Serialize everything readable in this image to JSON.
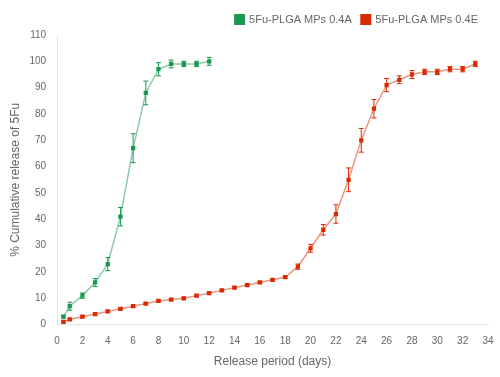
{
  "chart_data": {
    "type": "line",
    "xlabel": "Release period (days)",
    "ylabel": "% Cumulative release of 5Fu",
    "xlim": [
      0,
      34
    ],
    "ylim": [
      0,
      110
    ],
    "xticks": [
      0,
      2,
      4,
      6,
      8,
      10,
      12,
      14,
      16,
      18,
      20,
      22,
      24,
      26,
      28,
      30,
      32,
      34
    ],
    "yticks": [
      0,
      10,
      20,
      30,
      40,
      50,
      60,
      70,
      80,
      90,
      100,
      110
    ],
    "grid": false,
    "legend": "upper right",
    "marker": "square",
    "series": [
      {
        "name": "5Fu-PLGA MPs 0.4A",
        "color": "#1a9850",
        "x": [
          0.5,
          1,
          2,
          3,
          4,
          5,
          6,
          7,
          8,
          9,
          10,
          11,
          12
        ],
        "values": [
          3,
          7,
          11,
          16,
          23,
          41,
          67,
          88,
          97,
          99,
          99,
          99,
          100
        ],
        "yerr": [
          0.5,
          1.5,
          1.0,
          1.5,
          2.5,
          3.5,
          5.5,
          4.5,
          2.5,
          1.5,
          1.0,
          1.0,
          1.5
        ]
      },
      {
        "name": "5Fu-PLGA MPs 0.4E",
        "color": "#d92b00",
        "x": [
          0.5,
          1,
          2,
          3,
          4,
          5,
          6,
          7,
          8,
          9,
          10,
          11,
          12,
          13,
          14,
          15,
          16,
          17,
          18,
          19,
          20,
          21,
          22,
          23,
          24,
          25,
          26,
          27,
          28,
          29,
          30,
          31,
          32,
          33
        ],
        "values": [
          1,
          2,
          3,
          4,
          5,
          6,
          7,
          8,
          9,
          9.5,
          10,
          11,
          12,
          13,
          14,
          15,
          16,
          17,
          18,
          22,
          29,
          36,
          42,
          55,
          70,
          82,
          91,
          93,
          95,
          96,
          96,
          97,
          97,
          99
        ],
        "yerr": [
          0.4,
          0.4,
          0.4,
          0.4,
          0.4,
          0.4,
          0.4,
          0.4,
          0.4,
          0.4,
          0.4,
          0.4,
          0.4,
          0.4,
          0.4,
          0.4,
          0.4,
          0.4,
          0.4,
          1.0,
          1.5,
          2.0,
          3.5,
          4.5,
          4.5,
          3.5,
          2.5,
          1.5,
          1.5,
          1.0,
          1.0,
          1.0,
          1.0,
          1.0
        ]
      }
    ]
  }
}
